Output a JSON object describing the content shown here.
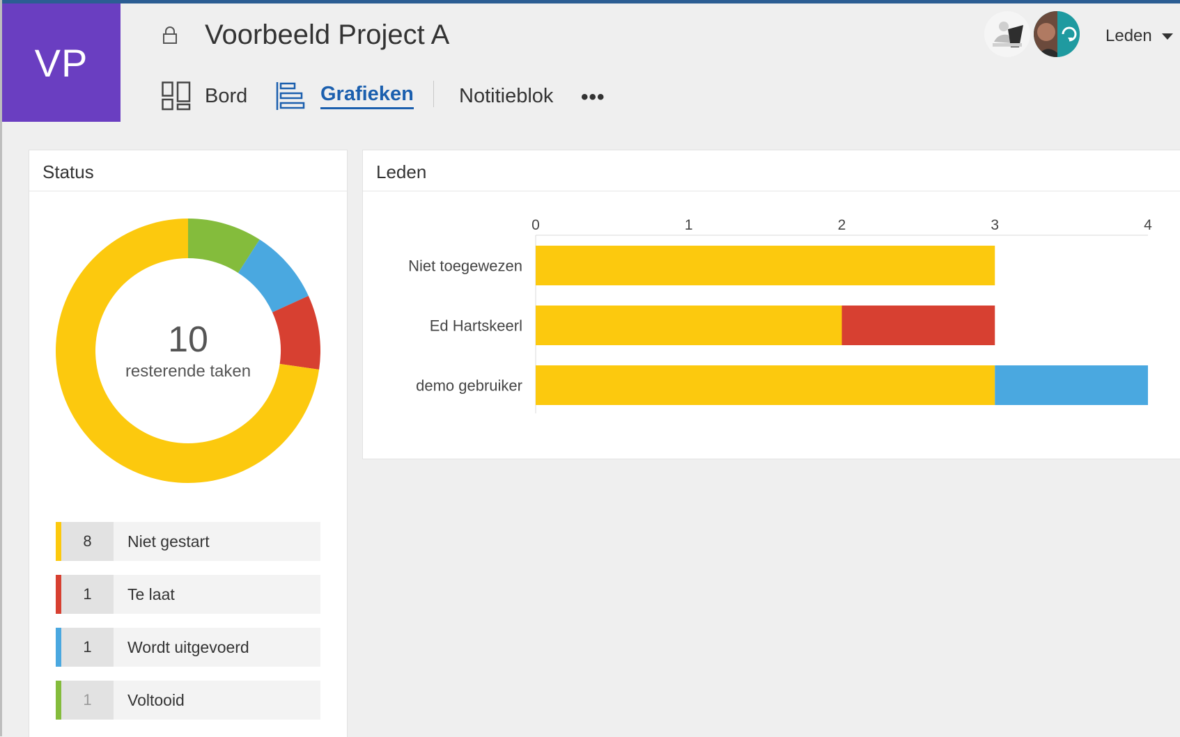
{
  "header": {
    "tile_initials": "VP",
    "project_title": "Voorbeeld Project A",
    "nav": {
      "board": "Bord",
      "charts": "Grafieken",
      "notebook": "Notitieblok",
      "more": "•••"
    },
    "members_button": "Leden"
  },
  "status_panel": {
    "title": "Status",
    "remaining_count": "10",
    "remaining_label": "resterende taken",
    "legend": [
      {
        "count": "8",
        "label": "Niet gestart",
        "color": "#fcc90e"
      },
      {
        "count": "1",
        "label": "Te laat",
        "color": "#d74031"
      },
      {
        "count": "1",
        "label": "Wordt uitgevoerd",
        "color": "#4aa8e0"
      },
      {
        "count": "1",
        "label": "Voltooid",
        "color": "#84bc3c"
      }
    ]
  },
  "members_panel": {
    "title": "Leden"
  },
  "chart_data": [
    {
      "type": "pie",
      "categories": [
        "Niet gestart",
        "Te laat",
        "Wordt uitgevoerd",
        "Voltooid"
      ],
      "values": [
        8,
        1,
        1,
        1
      ],
      "colors": [
        "#fcc90e",
        "#d74031",
        "#4aa8e0",
        "#84bc3c"
      ],
      "donut": true,
      "start_order": [
        "Voltooid",
        "Wordt uitgevoerd",
        "Te laat",
        "Niet gestart"
      ],
      "center_text": "10",
      "center_subtext": "resterende taken"
    },
    {
      "type": "bar",
      "orientation": "horizontal",
      "stacked": true,
      "categories": [
        "Niet toegewezen",
        "Ed Hartskeerl",
        "demo gebruiker"
      ],
      "series": [
        {
          "values": [
            3,
            2,
            3
          ],
          "color": "#fcc90e"
        },
        {
          "values": [
            0,
            1,
            0
          ],
          "color": "#d74031"
        },
        {
          "values": [
            0,
            0,
            1
          ],
          "color": "#4aa8e0"
        }
      ],
      "xlim": [
        0,
        4
      ],
      "xticks": [
        "0",
        "1",
        "2",
        "3",
        "4"
      ],
      "axis_position": "top",
      "grid": false
    }
  ]
}
